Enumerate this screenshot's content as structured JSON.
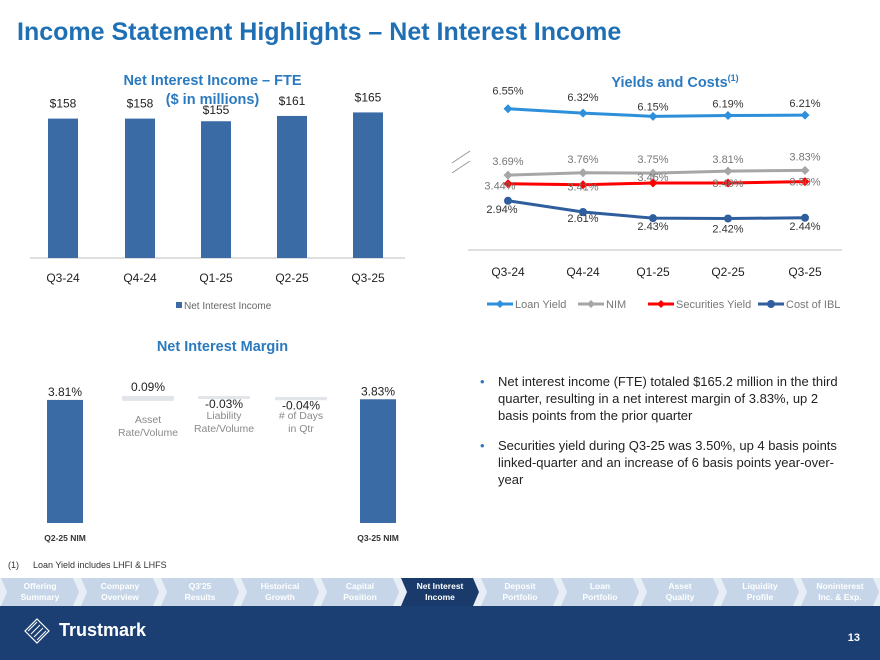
{
  "page": {
    "title": "Income Statement Highlights – Net Interest Income",
    "page_number": "13"
  },
  "nii_chart": {
    "title_line1": "Net Interest Income – FTE",
    "title_line2": "($ in millions)",
    "legend": "Net Interest Income"
  },
  "yields_chart": {
    "title": "Yields and Costs",
    "title_sup": "(1)"
  },
  "nim_chart": {
    "title": "Net Interest Margin"
  },
  "bullets": [
    "Net interest income (FTE) totaled $165.2 million in the third quarter, resulting in a net interest margin of 3.83%, up 2 basis points from the prior quarter",
    "Securities yield during Q3-25 was 3.50%, up 4 basis points linked-quarter and an increase of 6 basis points year-over-year"
  ],
  "footnote": {
    "marker": "(1)",
    "text": "Loan Yield  includes LHFI & LHFS"
  },
  "nav": [
    {
      "line1": "Offering",
      "line2": "Summary",
      "active": false
    },
    {
      "line1": "Company",
      "line2": "Overview",
      "active": false
    },
    {
      "line1": "Q3'25",
      "line2": "Results",
      "active": false
    },
    {
      "line1": "Historical",
      "line2": "Growth",
      "active": false
    },
    {
      "line1": "Capital",
      "line2": "Position",
      "active": false
    },
    {
      "line1": "Net Interest",
      "line2": "Income",
      "active": true
    },
    {
      "line1": "Deposit",
      "line2": "Portfolio",
      "active": false
    },
    {
      "line1": "Loan",
      "line2": "Portfolio",
      "active": false
    },
    {
      "line1": "Asset",
      "line2": "Quality",
      "active": false
    },
    {
      "line1": "Liquidity",
      "line2": "Profile",
      "active": false
    },
    {
      "line1": "Noninterest",
      "line2": "Inc. & Exp.",
      "active": false
    }
  ],
  "logo": {
    "text": "Trustmark"
  },
  "colors": {
    "bar": "#3b6ba5",
    "title": "#1f6fb5",
    "loan": "#2e8fdb",
    "nim": "#a6a6a6",
    "securities": "#ff0000",
    "ibl": "#2f5e9e"
  },
  "chart_data": [
    {
      "type": "bar",
      "title": "Net Interest Income – FTE ($ in millions)",
      "categories": [
        "Q3-24",
        "Q4-24",
        "Q1-25",
        "Q2-25",
        "Q3-25"
      ],
      "values": [
        158,
        158,
        155,
        161,
        165
      ],
      "labels": [
        "$158",
        "$158",
        "$155",
        "$161",
        "$165"
      ],
      "legend": "Net Interest Income",
      "ylim": [
        0,
        170
      ]
    },
    {
      "type": "line",
      "title": "Yields and Costs",
      "categories": [
        "Q3-24",
        "Q4-24",
        "Q1-25",
        "Q2-25",
        "Q3-25"
      ],
      "series": [
        {
          "name": "Loan Yield",
          "values": [
            6.55,
            6.32,
            6.15,
            6.19,
            6.21
          ],
          "labels": [
            "6.55%",
            "6.32%",
            "6.15%",
            "6.19%",
            "6.21%"
          ]
        },
        {
          "name": "NIM",
          "values": [
            3.69,
            3.76,
            3.75,
            3.81,
            3.83
          ],
          "labels": [
            "3.69%",
            "3.76%",
            "3.75%",
            "3.81%",
            "3.83%"
          ]
        },
        {
          "name": "Securities Yield",
          "values": [
            3.44,
            3.41,
            3.46,
            3.46,
            3.5
          ],
          "labels": [
            "3.44%",
            "3.41%",
            "3.46%",
            "3.46%",
            "3.50%"
          ]
        },
        {
          "name": "Cost of IBL",
          "values": [
            2.94,
            2.61,
            2.43,
            2.42,
            2.44
          ],
          "labels": [
            "2.94%",
            "2.61%",
            "2.43%",
            "2.42%",
            "2.44%"
          ]
        }
      ]
    },
    {
      "type": "bar",
      "subtype": "waterfall",
      "title": "Net Interest Margin",
      "steps": [
        {
          "label": "Q2-25 NIM",
          "value": 3.81,
          "text": "3.81%",
          "kind": "total"
        },
        {
          "label": "Asset Rate/Volume",
          "value": 0.09,
          "text": "0.09%",
          "kind": "delta"
        },
        {
          "label": "Liability Rate/Volume",
          "value": -0.03,
          "text": "-0.03%",
          "kind": "delta"
        },
        {
          "label": "# of Days in Qtr",
          "value": -0.04,
          "text": "-0.04%",
          "kind": "delta"
        },
        {
          "label": "Q3-25 NIM",
          "value": 3.83,
          "text": "3.83%",
          "kind": "total"
        }
      ]
    }
  ]
}
